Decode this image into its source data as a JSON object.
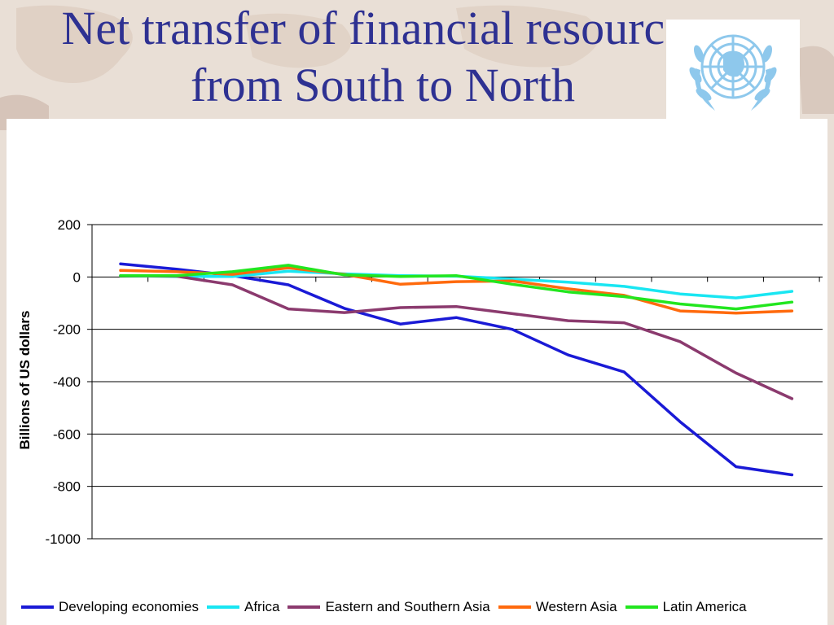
{
  "slide": {
    "title_line1": "Net transfer of financial resources",
    "title_line2": "from South to North"
  },
  "logo": {
    "name": "united-nations-emblem",
    "color": "#8ec8ec"
  },
  "colors": {
    "title": "#2e3192",
    "background": "#e9dfd6"
  },
  "chart_data": {
    "type": "line",
    "title": "",
    "xlabel": "",
    "ylabel": "Billions of US dollars",
    "ylim": [
      -1000,
      200
    ],
    "yticks": [
      200,
      0,
      -200,
      -400,
      -600,
      -800,
      -1000
    ],
    "x_count": 13,
    "legend_position": "bottom",
    "series": [
      {
        "name": "Developing economies",
        "color": "#1a1ad6",
        "values": [
          50,
          30,
          5,
          -30,
          -120,
          -180,
          -155,
          -200,
          -298,
          -363,
          -553,
          -725,
          -756
        ]
      },
      {
        "name": "Africa",
        "color": "#19e6f2",
        "values": [
          5,
          2,
          2,
          22,
          12,
          5,
          3,
          -8,
          -20,
          -36,
          -65,
          -80,
          -55
        ]
      },
      {
        "name": "Eastern and Southern Asia",
        "color": "#8b3a6e",
        "values": [
          5,
          3,
          -30,
          -122,
          -136,
          -117,
          -113,
          -140,
          -167,
          -175,
          -247,
          -367,
          -465
        ]
      },
      {
        "name": "Western Asia",
        "color": "#ff6a0d",
        "values": [
          25,
          20,
          10,
          35,
          10,
          -28,
          -18,
          -15,
          -45,
          -70,
          -130,
          -138,
          -130
        ]
      },
      {
        "name": "Latin America",
        "color": "#22e61f",
        "values": [
          5,
          5,
          20,
          45,
          8,
          2,
          5,
          -28,
          -57,
          -75,
          -103,
          -122,
          -96
        ]
      }
    ]
  }
}
